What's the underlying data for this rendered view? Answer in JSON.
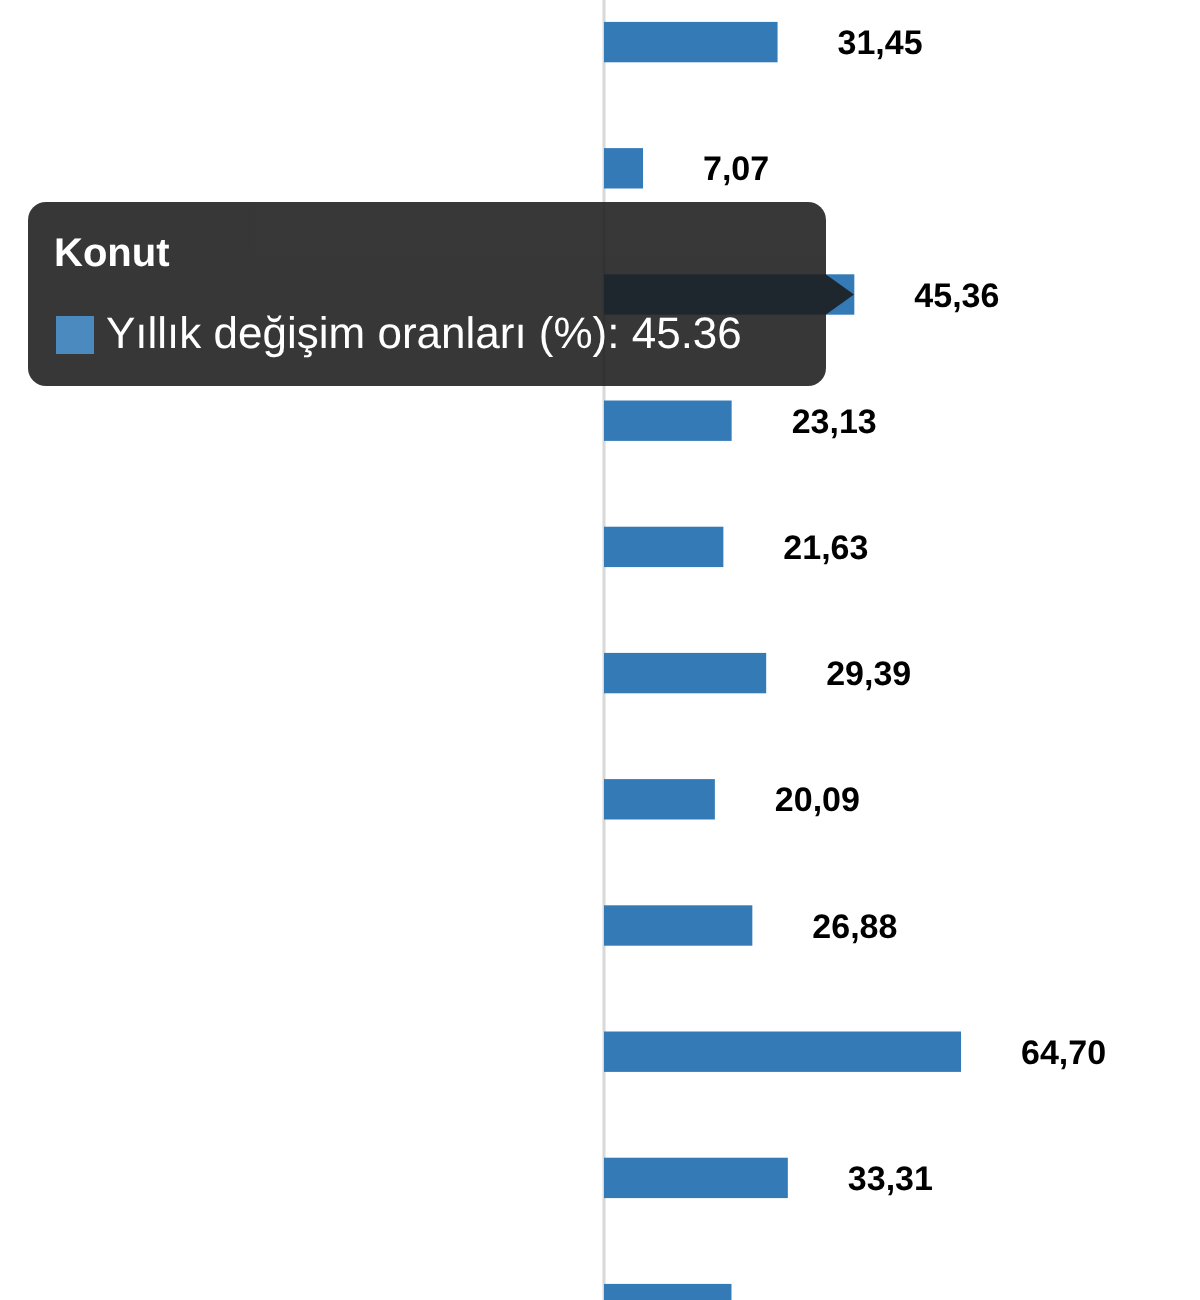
{
  "chart_data": {
    "type": "bar",
    "orientation": "horizontal",
    "categories": [
      null,
      null,
      null,
      null,
      null,
      null,
      null,
      null,
      null,
      null,
      null
    ],
    "annotations": [
      "Konut",
      ": 45.36"
    ],
    "series": [
      {
        "name": "Yıllık değişim oranları (%)",
        "color": "#337ab7",
        "values": [
          31.45,
          7.07,
          45.36,
          23.13,
          21.63,
          29.39,
          20.09,
          26.88,
          64.7,
          33.31,
          23.1
        ],
        "value_labels": [
          "31,45",
          "7,07",
          "45,36",
          "23,13",
          "21,63",
          "29,39",
          "20,09",
          "26,88",
          "64,70",
          "33,31",
          null
        ]
      }
    ],
    "xlim": [
      0,
      108
    ],
    "legend": false
  }
}
